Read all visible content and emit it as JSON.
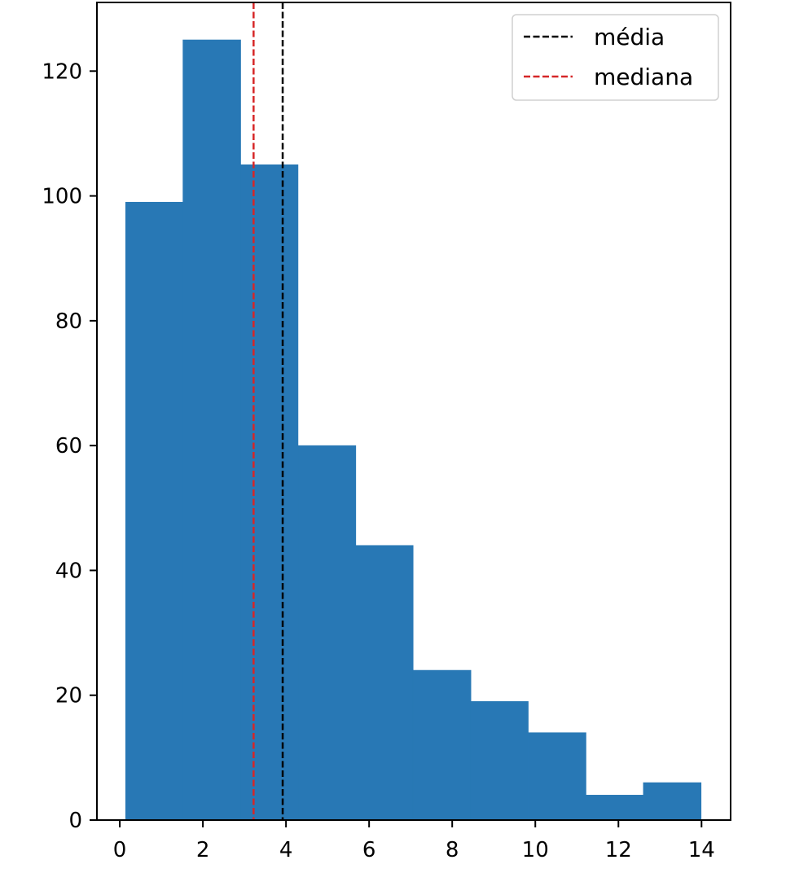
{
  "chart_data": {
    "type": "bar",
    "subtype": "histogram",
    "bins": [
      {
        "x0": 0.14,
        "x1": 1.52,
        "value": 99
      },
      {
        "x0": 1.52,
        "x1": 2.91,
        "value": 125
      },
      {
        "x0": 2.91,
        "x1": 4.29,
        "value": 105
      },
      {
        "x0": 4.29,
        "x1": 5.68,
        "value": 60
      },
      {
        "x0": 5.68,
        "x1": 7.06,
        "value": 44
      },
      {
        "x0": 7.06,
        "x1": 8.45,
        "value": 24
      },
      {
        "x0": 8.45,
        "x1": 9.83,
        "value": 19
      },
      {
        "x0": 9.83,
        "x1": 11.22,
        "value": 14
      },
      {
        "x0": 11.22,
        "x1": 12.6,
        "value": 4
      },
      {
        "x0": 12.6,
        "x1": 13.99,
        "value": 6
      }
    ],
    "bar_color": "#2878b5",
    "xlim": [
      -0.55,
      14.7
    ],
    "ylim": [
      0,
      131
    ],
    "xticks": [
      0,
      2,
      4,
      6,
      8,
      10,
      12,
      14
    ],
    "yticks": [
      0,
      20,
      40,
      60,
      80,
      100,
      120
    ],
    "xlabel": "",
    "ylabel": "",
    "title": "",
    "grid": false,
    "reference_lines": [
      {
        "name": "média",
        "x": 3.92,
        "color": "#000000",
        "style": "dashed"
      },
      {
        "name": "mediana",
        "x": 3.22,
        "color": "#d62728",
        "style": "dashed"
      }
    ],
    "legend": {
      "position": "top-right",
      "entries": [
        {
          "label": "média",
          "color": "#000000"
        },
        {
          "label": "mediana",
          "color": "#d62728"
        }
      ]
    }
  }
}
